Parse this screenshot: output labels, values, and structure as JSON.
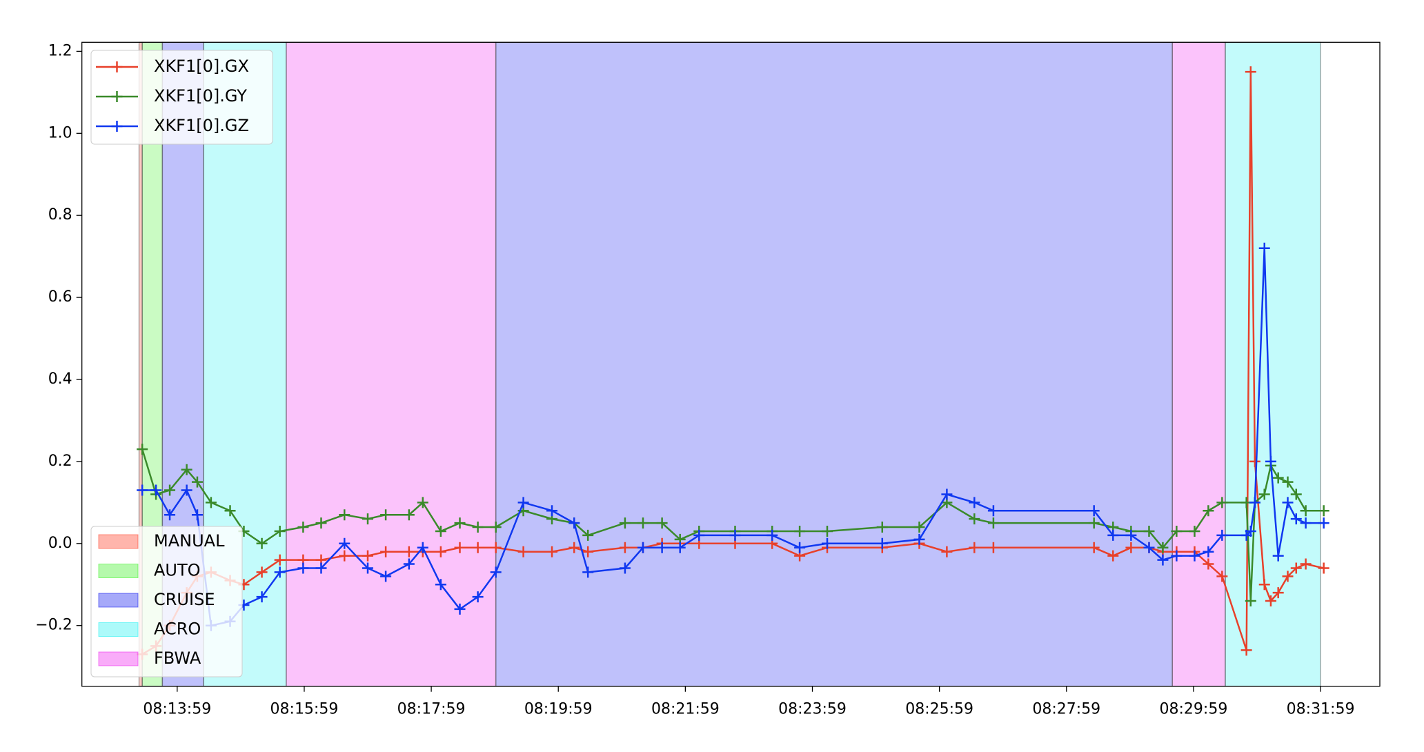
{
  "chart_data": {
    "type": "line",
    "x": [
      "08:13:26",
      "08:13:39",
      "08:13:52",
      "08:14:08",
      "08:14:18",
      "08:14:31",
      "08:14:49",
      "08:15:02",
      "08:15:19",
      "08:15:36",
      "08:15:58",
      "08:16:15",
      "08:16:37",
      "08:16:59",
      "08:17:16",
      "08:17:38",
      "08:17:51",
      "08:18:08",
      "08:18:26",
      "08:18:43",
      "08:19:00",
      "08:19:26",
      "08:19:53",
      "08:20:14",
      "08:20:27",
      "08:21:02",
      "08:21:19",
      "08:21:37",
      "08:21:54",
      "08:22:12",
      "08:22:46",
      "08:23:21",
      "08:23:47",
      "08:24:13",
      "08:25:05",
      "08:25:40",
      "08:26:06",
      "08:26:32",
      "08:26:50",
      "08:28:25",
      "08:28:43",
      "08:29:00",
      "08:29:17",
      "08:29:30",
      "08:29:43",
      "08:30:00",
      "08:30:13",
      "08:30:26",
      "08:30:49",
      "08:30:53",
      "08:30:57",
      "08:31:06",
      "08:31:12",
      "08:31:19",
      "08:31:28",
      "08:31:36",
      "08:31:45",
      "08:32:02"
    ],
    "series": [
      {
        "name": "XKF1[0].GX",
        "color": "#e8402a",
        "values": [
          -0.27,
          -0.25,
          -0.2,
          -0.12,
          -0.08,
          -0.07,
          -0.09,
          -0.1,
          -0.07,
          -0.04,
          -0.04,
          -0.04,
          -0.03,
          -0.03,
          -0.02,
          -0.02,
          -0.02,
          -0.02,
          -0.01,
          -0.01,
          -0.01,
          -0.02,
          -0.02,
          -0.01,
          -0.02,
          -0.01,
          -0.01,
          0,
          0,
          0,
          0,
          0,
          -0.03,
          -0.01,
          -0.01,
          0,
          -0.02,
          -0.01,
          -0.01,
          -0.01,
          -0.03,
          -0.01,
          -0.01,
          -0.02,
          -0.02,
          -0.02,
          -0.05,
          -0.08,
          -0.26,
          1.15,
          0.2,
          -0.1,
          -0.14,
          -0.12,
          -0.08,
          -0.06,
          -0.05,
          -0.06
        ]
      },
      {
        "name": "XKF1[0].GY",
        "color": "#3a8a2a",
        "values": [
          0.23,
          0.12,
          0.13,
          0.18,
          0.15,
          0.1,
          0.08,
          0.03,
          0,
          0.03,
          0.04,
          0.05,
          0.07,
          0.06,
          0.07,
          0.07,
          0.1,
          0.03,
          0.05,
          0.04,
          0.04,
          0.08,
          0.06,
          0.05,
          0.02,
          0.05,
          0.05,
          0.05,
          0.01,
          0.03,
          0.03,
          0.03,
          0.03,
          0.03,
          0.04,
          0.04,
          0.1,
          0.06,
          0.05,
          0.05,
          0.04,
          0.03,
          0.03,
          -0.01,
          0.03,
          0.03,
          0.08,
          0.1,
          0.1,
          -0.14,
          0.1,
          0.12,
          0.19,
          0.16,
          0.15,
          0.12,
          0.08,
          0.08
        ]
      },
      {
        "name": "XKF1[0].GZ",
        "color": "#1038f0",
        "values": [
          0.13,
          0.13,
          0.07,
          0.13,
          0.07,
          -0.2,
          -0.19,
          -0.15,
          -0.13,
          -0.07,
          -0.06,
          -0.06,
          0,
          -0.06,
          -0.08,
          -0.05,
          -0.01,
          -0.1,
          -0.16,
          -0.13,
          -0.07,
          0.1,
          0.08,
          0.05,
          -0.07,
          -0.06,
          -0.01,
          -0.01,
          -0.01,
          0.02,
          0.02,
          0.02,
          -0.01,
          0,
          0,
          0.01,
          0.12,
          0.1,
          0.08,
          0.08,
          0.02,
          0.02,
          -0.01,
          -0.04,
          -0.03,
          -0.03,
          -0.02,
          0.02,
          0.02,
          0.03,
          0.1,
          0.72,
          0.2,
          -0.03,
          0.1,
          0.06,
          0.05,
          0.05
        ]
      }
    ],
    "modes": [
      {
        "name": "MANUAL",
        "color": "#ff2a10"
      },
      {
        "name": "AUTO",
        "color": "#2bef10"
      },
      {
        "name": "CRUISE",
        "color": "#0008ee"
      },
      {
        "name": "ACRO",
        "color": "#10f0f0"
      },
      {
        "name": "FBWA",
        "color": "#ee10ee"
      }
    ],
    "mode_spans": [
      {
        "mode": "MANUAL",
        "start": "08:13:23",
        "end": "08:13:26"
      },
      {
        "mode": "AUTO",
        "start": "08:13:26",
        "end": "08:13:45"
      },
      {
        "mode": "CRUISE",
        "start": "08:13:45",
        "end": "08:14:24"
      },
      {
        "mode": "ACRO",
        "start": "08:14:24",
        "end": "08:15:42"
      },
      {
        "mode": "FBWA",
        "start": "08:15:42",
        "end": "08:19:00"
      },
      {
        "mode": "CRUISE",
        "start": "08:19:00",
        "end": "08:29:39"
      },
      {
        "mode": "FBWA",
        "start": "08:29:39",
        "end": "08:30:29"
      },
      {
        "mode": "ACRO",
        "start": "08:30:29",
        "end": "08:31:59"
      }
    ],
    "xlim": [
      "08:12:29",
      "08:32:55"
    ],
    "xticks": [
      "08:13:59",
      "08:15:59",
      "08:17:59",
      "08:19:59",
      "08:21:59",
      "08:23:59",
      "08:25:59",
      "08:27:59",
      "08:29:59",
      "08:31:59"
    ],
    "ylim": [
      -0.348,
      1.222
    ],
    "yticks": [
      {
        "value": -0.2,
        "label": "−0.2"
      },
      {
        "value": 0,
        "label": "0.0"
      },
      0.2,
      0.4,
      0.6,
      0.8,
      {
        "value": 1,
        "label": "1.0"
      },
      1.2
    ]
  }
}
